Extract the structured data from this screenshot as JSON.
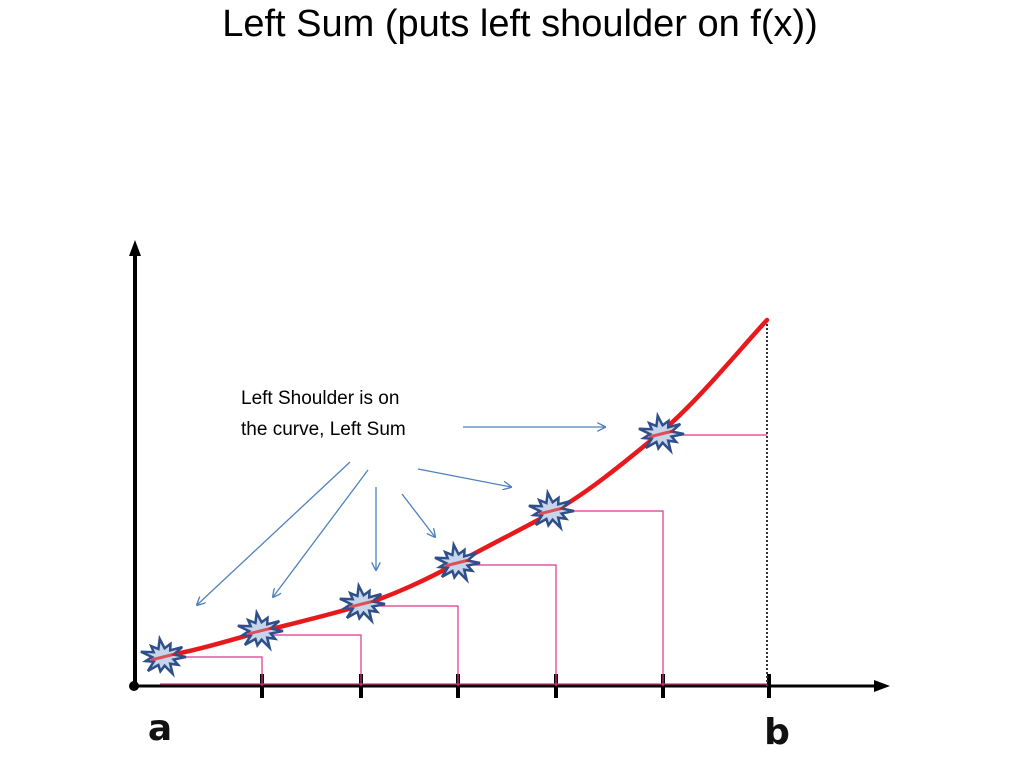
{
  "title": "Left Sum (puts left shoulder on f(x))",
  "annotation": {
    "lines": [
      "Left Shoulder is on",
      "the curve, Left Sum"
    ]
  },
  "axis_labels": {
    "left": "a",
    "right": "b"
  }
}
